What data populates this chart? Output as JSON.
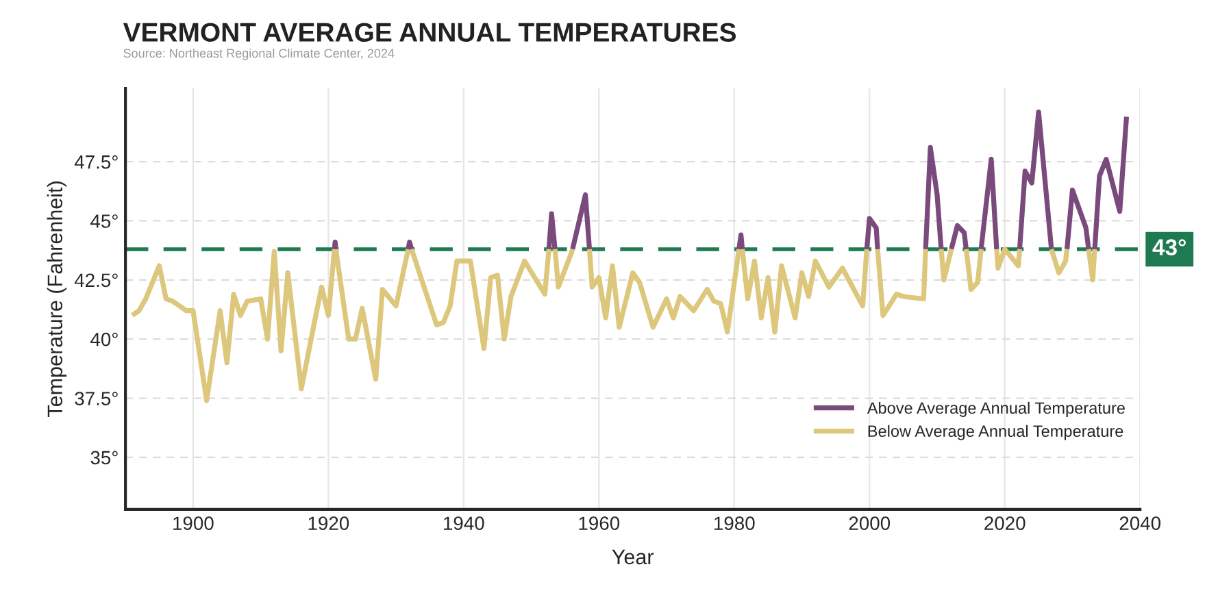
{
  "chart_data": {
    "type": "line",
    "title": "VERMONT AVERAGE ANNUAL TEMPERATURES",
    "annotations": [
      "Source: Northeast Regional Climate Center, 2024",
      "43°"
    ],
    "xlabel": "Year",
    "ylabel": "Temperature (Fahrenheit)",
    "series": [
      {
        "name": "Above Average Annual Temperature",
        "color": "#7b4a7c",
        "x": [
          1920.9,
          1921,
          1921.1,
          1925,
          1931.8,
          1932,
          1932.3,
          1940,
          1952.6,
          1953,
          1953.5,
          1955,
          1956.1,
          1958,
          1958.6,
          1970,
          1980.7,
          1981,
          1981.2,
          1990,
          1999.6,
          2000,
          2001,
          2001.2,
          2005,
          2008.3,
          2009,
          2010,
          2010.6,
          2011,
          2012.1,
          2013,
          2014,
          2014.3,
          2015,
          2016.5,
          2018,
          2018.8,
          2020,
          2022.2,
          2023,
          2024,
          2025,
          2026.9,
          2028,
          2029.2,
          2030,
          2032,
          2032.4,
          2033,
          2033.3,
          2034,
          2035,
          2037,
          2038
        ],
        "values": [
          43.8,
          44.1,
          43.8,
          null,
          43.8,
          44.1,
          43.8,
          null,
          43.8,
          45.3,
          43.8,
          null,
          43.8,
          46.1,
          43.8,
          null,
          43.8,
          44.4,
          43.8,
          null,
          43.8,
          45.1,
          44.7,
          43.8,
          null,
          43.8,
          48.1,
          46.1,
          43.8,
          null,
          43.8,
          44.8,
          44.5,
          43.8,
          null,
          43.8,
          47.6,
          43.8,
          null,
          43.8,
          47.1,
          46.6,
          49.6,
          43.8,
          null,
          43.8,
          46.3,
          44.7,
          43.8,
          null,
          43.8,
          46.9,
          47.6,
          45.4,
          49.4
        ]
      },
      {
        "name": "Below Average Annual Temperature",
        "color": "#dcc77c",
        "x": [
          1891,
          1892,
          1893,
          1895,
          1896,
          1897,
          1899,
          1900,
          1902,
          1904,
          1905,
          1906,
          1907,
          1908,
          1910,
          1911,
          1912,
          1913,
          1914,
          1916,
          1918,
          1919,
          1920,
          1920.9,
          1921,
          1921.1,
          1923,
          1924,
          1925,
          1927,
          1928,
          1930,
          1931.8,
          1932,
          1932.3,
          1936,
          1937,
          1938,
          1939,
          1941,
          1943,
          1944,
          1945,
          1946,
          1947,
          1949,
          1952,
          1952.6,
          1953,
          1953.5,
          1954,
          1956,
          1956.1,
          1958,
          1958.6,
          1959,
          1960,
          1961,
          1962,
          1963,
          1965,
          1966,
          1968,
          1970,
          1971,
          1972,
          1974,
          1976,
          1977,
          1978,
          1979,
          1980.7,
          1981,
          1981.2,
          1982,
          1983,
          1984,
          1985,
          1986,
          1987,
          1989,
          1990,
          1991,
          1992,
          1994,
          1996,
          1999,
          1999.6,
          2000,
          2001.2,
          2002,
          2004,
          2005,
          2008,
          2008.3,
          2009,
          2010.6,
          2011,
          2012.1,
          2013,
          2014.3,
          2015,
          2016,
          2016.5,
          2018,
          2018.8,
          2019,
          2020,
          2022,
          2022.2,
          2023,
          2026.9,
          2027,
          2028,
          2029,
          2029.2,
          2030,
          2032.4,
          2033,
          2033.3
        ],
        "values": [
          41.0,
          41.2,
          41.7,
          43.1,
          41.7,
          41.6,
          41.2,
          41.2,
          37.4,
          41.2,
          39.0,
          41.9,
          41.0,
          41.6,
          41.7,
          40.0,
          43.7,
          39.5,
          42.8,
          37.9,
          40.8,
          42.2,
          41.0,
          43.8,
          null,
          43.8,
          40.0,
          40.0,
          41.3,
          38.3,
          42.1,
          41.4,
          43.8,
          null,
          43.8,
          40.6,
          40.7,
          41.4,
          43.3,
          43.3,
          39.6,
          42.6,
          42.7,
          40.0,
          41.8,
          43.3,
          41.9,
          43.8,
          null,
          43.8,
          42.2,
          43.7,
          43.8,
          null,
          43.8,
          42.2,
          42.6,
          40.9,
          43.1,
          40.5,
          42.8,
          42.4,
          40.5,
          41.7,
          40.9,
          41.8,
          41.2,
          42.1,
          41.6,
          41.5,
          40.3,
          43.8,
          null,
          43.8,
          41.7,
          43.3,
          40.9,
          42.6,
          40.3,
          43.1,
          40.9,
          42.8,
          41.8,
          43.3,
          42.2,
          43.0,
          41.4,
          43.8,
          null,
          43.8,
          41.0,
          41.9,
          41.8,
          41.7,
          43.8,
          null,
          43.8,
          42.5,
          43.8,
          null,
          43.8,
          42.1,
          42.4,
          43.8,
          null,
          43.8,
          43.0,
          43.8,
          43.1,
          43.8,
          null,
          43.8,
          43.7,
          42.8,
          43.3,
          43.8,
          null,
          43.8,
          42.5,
          43.8
        ]
      }
    ],
    "ref_lines": [
      {
        "axis": "y",
        "value": 43.8,
        "color": "#1e7a50",
        "line_style": "dashed"
      }
    ],
    "xlim": [
      1890,
      2040
    ],
    "xticks": [
      1900,
      1920,
      1940,
      1960,
      1980,
      2000,
      2020,
      2040
    ],
    "ylim": [
      32.8,
      50.6
    ],
    "yticks": [
      {
        "value": 35,
        "label": "35°"
      },
      {
        "value": 37.5,
        "label": "37.5°"
      },
      {
        "value": 40,
        "label": "40°"
      },
      {
        "value": 42.5,
        "label": "42.5°"
      },
      {
        "value": 45,
        "label": "45°"
      },
      {
        "value": 47.5,
        "label": "47.5°"
      }
    ],
    "grid": true,
    "legend": "lower right",
    "line_style": "solid",
    "marker": "none"
  }
}
